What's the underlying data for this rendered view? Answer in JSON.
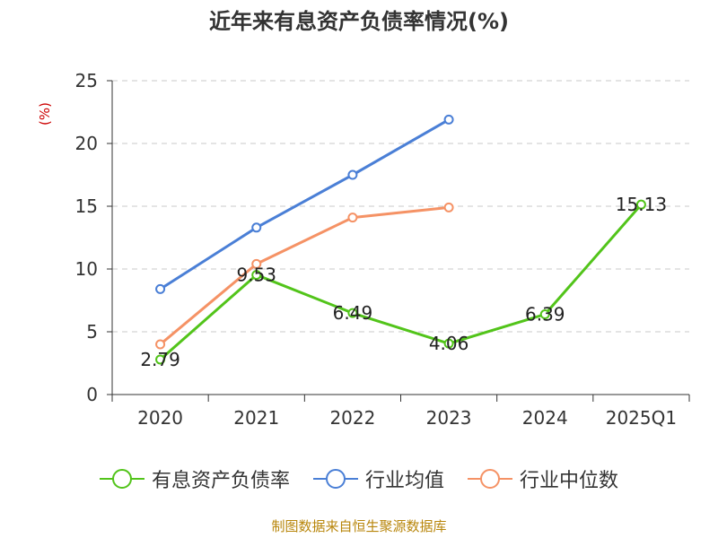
{
  "chart_data": {
    "type": "line",
    "title": "近年来有息资产负债率情况(%)",
    "ylabel": "(%)",
    "xlabel": "",
    "categories": [
      "2020",
      "2021",
      "2022",
      "2023",
      "2024",
      "2025Q1"
    ],
    "ylim": [
      0,
      25
    ],
    "yticks": [
      0,
      5,
      10,
      15,
      20,
      25
    ],
    "grid": true,
    "legend_position": "bottom",
    "series": [
      {
        "name": "有息资产负债率",
        "color": "#52c41a",
        "values": [
          2.79,
          9.53,
          6.49,
          4.06,
          6.39,
          15.13
        ],
        "labels": [
          "2.79",
          "9.53",
          "6.49",
          "4.06",
          "6.39",
          "15.13"
        ]
      },
      {
        "name": "行业均值",
        "color": "#4a7fd6",
        "values": [
          8.4,
          13.3,
          17.5,
          21.9,
          null,
          null
        ]
      },
      {
        "name": "行业中位数",
        "color": "#f59265",
        "values": [
          4.0,
          10.4,
          14.1,
          14.9,
          null,
          null
        ]
      }
    ]
  },
  "footer": {
    "source": "制图数据来自恒生聚源数据库"
  }
}
